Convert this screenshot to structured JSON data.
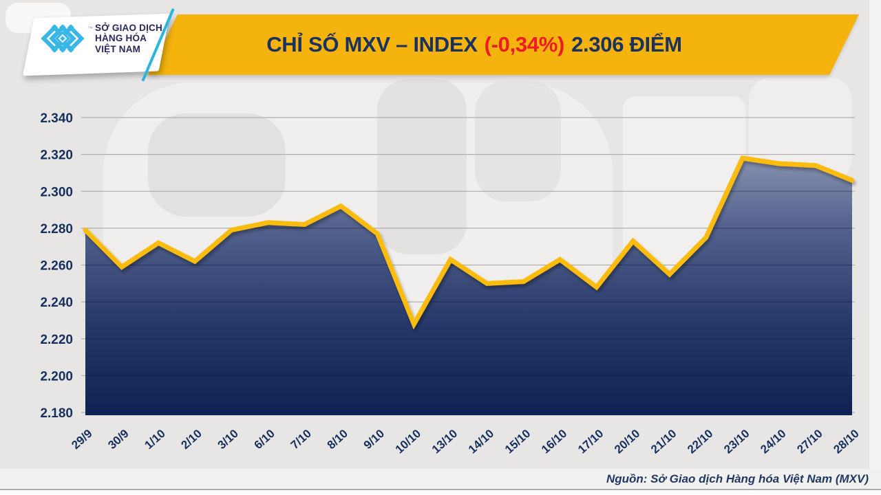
{
  "header": {
    "logo": {
      "trademark": "™",
      "name_line1": "SỞ GIAO DỊCH",
      "name_line2": "HÀNG HÓA",
      "name_line3": "VIỆT NAM",
      "mark_color": "#38b6e6",
      "name_color": "#29265f"
    },
    "banner": {
      "title_prefix": "CHỈ SỐ MXV – INDEX",
      "title_change": "(-0,34%)",
      "title_suffix": "2.306 ĐIỂM",
      "bg_color": "#f4b30d",
      "text_color": "#1b3261",
      "change_color": "#ec1b24"
    }
  },
  "footer": {
    "source_text": "Nguồn: Sở Giao dịch Hàng hóa Việt Nam (MXV)"
  },
  "chart_data": {
    "type": "area",
    "title": "CHỈ SỐ MXV – INDEX (-0,34%) 2.306 ĐIỂM",
    "categories": [
      "29/9",
      "30/9",
      "1/10",
      "2/10",
      "3/10",
      "6/10",
      "7/10",
      "8/10",
      "9/10",
      "10/10",
      "13/10",
      "14/10",
      "15/10",
      "16/10",
      "17/10",
      "20/10",
      "21/10",
      "22/10",
      "23/10",
      "24/10",
      "27/10",
      "28/10"
    ],
    "values": [
      2279,
      2259,
      2272,
      2262,
      2279,
      2283,
      2282,
      2292,
      2277,
      2228,
      2263,
      2250,
      2251,
      2263,
      2248,
      2273,
      2255,
      2275,
      2318,
      2315,
      2314,
      2306
    ],
    "ylim": [
      2180,
      2340
    ],
    "ytick_step": 20,
    "ytick_labels": [
      "2.180",
      "2.200",
      "2.220",
      "2.240",
      "2.260",
      "2.280",
      "2.300",
      "2.320",
      "2.340"
    ],
    "xlabel": "",
    "ylabel": "",
    "grid": true,
    "legend": "none",
    "line_color": "#fcbc10",
    "grid_color": "#b0aeae",
    "axis_label_color": "#16305e",
    "area_gradient": [
      "#96a0ba",
      "#55648f",
      "#26386a",
      "#0e2052"
    ],
    "last_value_display": "2.306",
    "change_display": "-0,34%"
  }
}
